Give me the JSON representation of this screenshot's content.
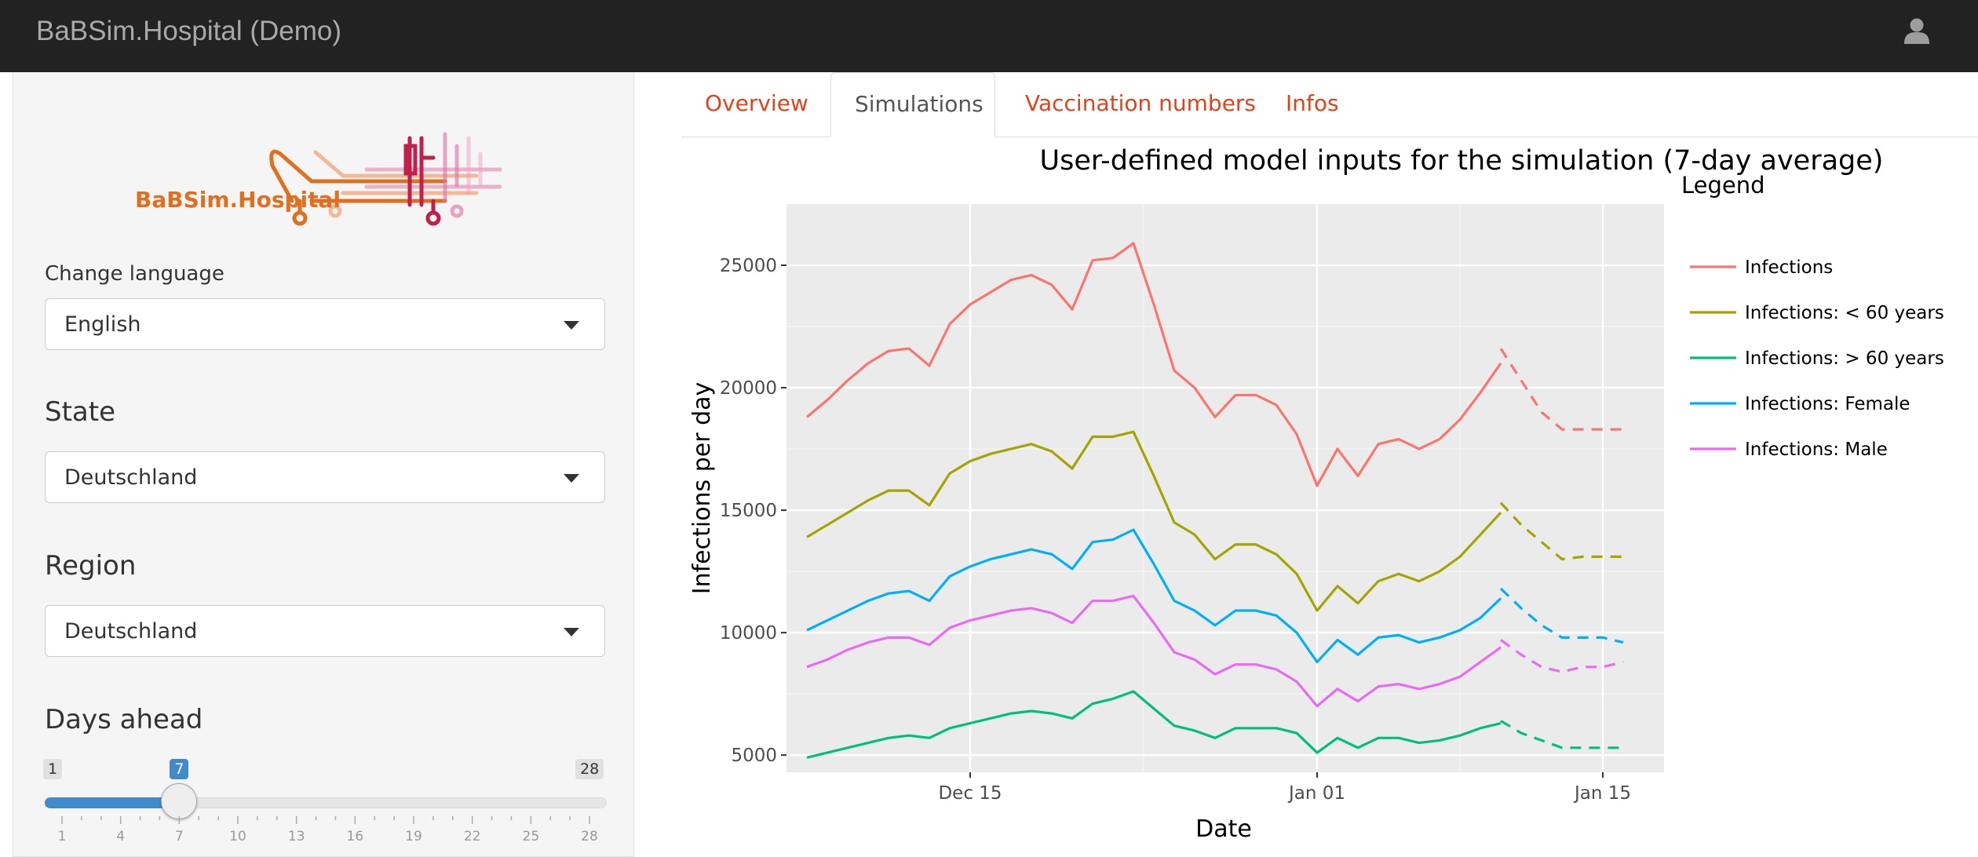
{
  "navbar": {
    "brand": "BaBSim.Hospital (Demo)",
    "user_icon": "user-icon"
  },
  "sidebar": {
    "logo_text": "BaBSim.Hospital",
    "language": {
      "label": "Change language",
      "value": "English"
    },
    "state": {
      "label": "State",
      "value": "Deutschland"
    },
    "region": {
      "label": "Region",
      "value": "Deutschland"
    },
    "days_ahead": {
      "label": "Days ahead",
      "min": "1",
      "max": "28",
      "value": "7",
      "grid_labels": [
        "1",
        "4",
        "7",
        "10",
        "13",
        "16",
        "19",
        "22",
        "25",
        "28"
      ]
    }
  },
  "tabs": [
    {
      "label": "Overview",
      "active": false
    },
    {
      "label": "Simulations",
      "active": true
    },
    {
      "label": "Vaccination numbers",
      "active": false
    },
    {
      "label": "Infos",
      "active": false
    }
  ],
  "colors": {
    "accent": "#e0431a",
    "slider": "#428bca",
    "navbar": "#222222"
  },
  "chart_data": {
    "type": "line",
    "title": "User-defined model inputs for the simulation (7-day average)",
    "xlabel": "Date",
    "ylabel": "Infections per day",
    "legend_title": "Legend",
    "legend_position": "right",
    "x_ticks": [
      {
        "date": "2020-12-15",
        "label": "Dec 15"
      },
      {
        "date": "2021-01-01",
        "label": "Jan 01"
      },
      {
        "date": "2021-01-15",
        "label": "Jan 15"
      }
    ],
    "y_ticks": [
      5000,
      10000,
      15000,
      20000,
      25000
    ],
    "ylim": [
      4300,
      27500
    ],
    "xlim": [
      "2020-12-06",
      "2021-01-18"
    ],
    "grid": true,
    "observed_dates": [
      "2020-12-07",
      "2020-12-08",
      "2020-12-09",
      "2020-12-10",
      "2020-12-11",
      "2020-12-12",
      "2020-12-13",
      "2020-12-14",
      "2020-12-15",
      "2020-12-16",
      "2020-12-17",
      "2020-12-18",
      "2020-12-19",
      "2020-12-20",
      "2020-12-21",
      "2020-12-22",
      "2020-12-23",
      "2020-12-24",
      "2020-12-25",
      "2020-12-26",
      "2020-12-27",
      "2020-12-28",
      "2020-12-29",
      "2020-12-30",
      "2020-12-31",
      "2021-01-01",
      "2021-01-02",
      "2021-01-03",
      "2021-01-04",
      "2021-01-05",
      "2021-01-06",
      "2021-01-07",
      "2021-01-08",
      "2021-01-09",
      "2021-01-10"
    ],
    "forecast_dates": [
      "2021-01-10",
      "2021-01-11",
      "2021-01-12",
      "2021-01-13",
      "2021-01-14",
      "2021-01-15",
      "2021-01-16"
    ],
    "series": [
      {
        "name": "Infections",
        "color": "#f8766d",
        "values": [
          18800,
          19500,
          20300,
          21000,
          21500,
          21600,
          20900,
          22600,
          23400,
          23900,
          24400,
          24600,
          24200,
          23200,
          25200,
          25300,
          25900,
          23400,
          20700,
          20000,
          18800,
          19700,
          19700,
          19300,
          18100,
          16000,
          17500,
          16400,
          17700,
          17900,
          17500,
          17900,
          18700,
          19800,
          21000
        ],
        "forecast": [
          21600,
          20300,
          19000,
          18300,
          18300,
          18300,
          18300
        ]
      },
      {
        "name": "Infections: < 60 years",
        "color": "#a3a500",
        "values": [
          13900,
          14400,
          14900,
          15400,
          15800,
          15800,
          15200,
          16500,
          17000,
          17300,
          17500,
          17700,
          17400,
          16700,
          18000,
          18000,
          18200,
          16400,
          14500,
          14000,
          13000,
          13600,
          13600,
          13200,
          12400,
          10900,
          11900,
          11200,
          12100,
          12400,
          12100,
          12500,
          13100,
          14000,
          14900
        ],
        "forecast": [
          15300,
          14400,
          13700,
          13000,
          13100,
          13100,
          13100
        ]
      },
      {
        "name": "Infections: > 60 years",
        "color": "#00bf7d",
        "values": [
          4900,
          5100,
          5300,
          5500,
          5700,
          5800,
          5700,
          6100,
          6300,
          6500,
          6700,
          6800,
          6700,
          6500,
          7100,
          7300,
          7600,
          6900,
          6200,
          6000,
          5700,
          6100,
          6100,
          6100,
          5900,
          5100,
          5700,
          5300,
          5700,
          5700,
          5500,
          5600,
          5800,
          6100,
          6300
        ],
        "forecast": [
          6400,
          5900,
          5600,
          5300,
          5300,
          5300,
          5300
        ]
      },
      {
        "name": "Infections: Female",
        "color": "#00b0f6",
        "values": [
          10100,
          10500,
          10900,
          11300,
          11600,
          11700,
          11300,
          12300,
          12700,
          13000,
          13200,
          13400,
          13200,
          12600,
          13700,
          13800,
          14200,
          12800,
          11300,
          10900,
          10300,
          10900,
          10900,
          10700,
          10000,
          8800,
          9700,
          9100,
          9800,
          9900,
          9600,
          9800,
          10100,
          10600,
          11400
        ],
        "forecast": [
          11800,
          11000,
          10300,
          9800,
          9800,
          9800,
          9600
        ]
      },
      {
        "name": "Infections: Male",
        "color": "#e76bf3",
        "values": [
          8600,
          8900,
          9300,
          9600,
          9800,
          9800,
          9500,
          10200,
          10500,
          10700,
          10900,
          11000,
          10800,
          10400,
          11300,
          11300,
          11500,
          10400,
          9200,
          8900,
          8300,
          8700,
          8700,
          8500,
          8000,
          7000,
          7700,
          7200,
          7800,
          7900,
          7700,
          7900,
          8200,
          8800,
          9400
        ],
        "forecast": [
          9700,
          9100,
          8600,
          8400,
          8600,
          8600,
          8800
        ]
      }
    ]
  }
}
